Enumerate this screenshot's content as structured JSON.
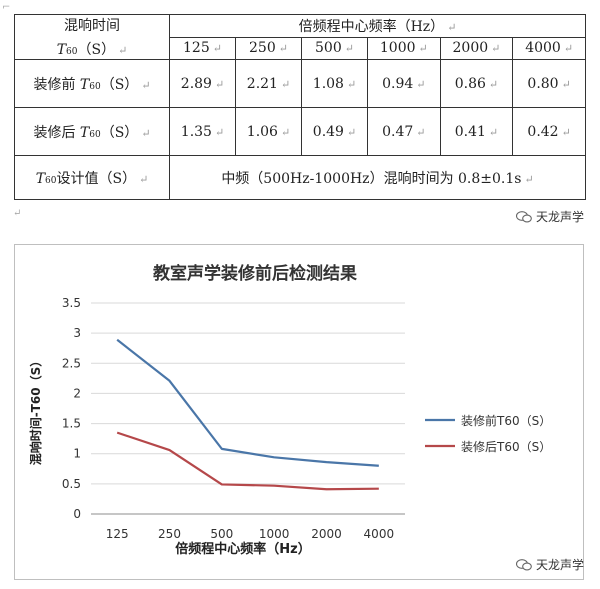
{
  "table": {
    "header_label": "混响时间",
    "header_unit": "（S）",
    "freq_header": "倍频程中心频率（Hz）",
    "freqs": [
      "125",
      "250",
      "500",
      "1000",
      "2000",
      "4000"
    ],
    "rows": [
      {
        "label_prefix": "装修前",
        "unit": "（S）",
        "values": [
          "2.89",
          "2.21",
          "1.08",
          "0.94",
          "0.86",
          "0.80"
        ]
      },
      {
        "label_prefix": "装修后",
        "unit": "（S）",
        "values": [
          "1.35",
          "1.06",
          "0.49",
          "0.47",
          "0.41",
          "0.42"
        ]
      }
    ],
    "design_label": "设计值（S）",
    "design_value": "中频（500Hz-1000Hz）混响时间为 0.8±0.1s"
  },
  "watermark": "天龙声学",
  "chart_data": {
    "type": "line",
    "title": "教室声学装修前后检测结果",
    "xlabel": "倍频程中心频率（Hz）",
    "ylabel": "混响时间-T60（S）",
    "categories": [
      "125",
      "250",
      "500",
      "1000",
      "2000",
      "4000"
    ],
    "ylim": [
      0,
      3.5
    ],
    "yticks": [
      "0",
      "0.5",
      "1",
      "1.5",
      "2",
      "2.5",
      "3",
      "3.5"
    ],
    "grid": true,
    "legend_position": "right",
    "series": [
      {
        "name": "装修前T60（S）",
        "color": "#4a76a8",
        "values": [
          2.89,
          2.21,
          1.08,
          0.94,
          0.86,
          0.8
        ]
      },
      {
        "name": "装修后T60（S）",
        "color": "#b5484a",
        "values": [
          1.35,
          1.06,
          0.49,
          0.47,
          0.41,
          0.42
        ]
      }
    ]
  }
}
